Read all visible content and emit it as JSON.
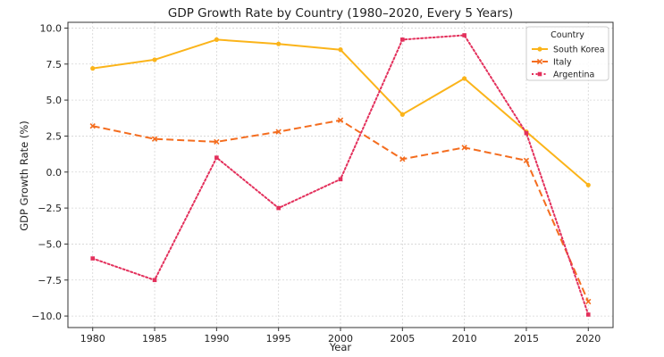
{
  "chart_data": {
    "type": "line",
    "title": "GDP Growth Rate by Country (1980–2020, Every 5 Years)",
    "xlabel": "Year",
    "ylabel": "GDP Growth Rate (%)",
    "x": [
      1980,
      1985,
      1990,
      1995,
      2000,
      2005,
      2010,
      2015,
      2020
    ],
    "x_tick_labels": [
      "1980",
      "1985",
      "1990",
      "1995",
      "2000",
      "2005",
      "2010",
      "2015",
      "2020"
    ],
    "y_ticks": [
      -10.0,
      -7.5,
      -5.0,
      -2.5,
      0.0,
      2.5,
      5.0,
      7.5,
      10.0
    ],
    "y_tick_labels": [
      "−10.0",
      "−7.5",
      "−5.0",
      "−2.5",
      "0.0",
      "2.5",
      "5.0",
      "7.5",
      "10.0"
    ],
    "xlim": [
      1978,
      2022
    ],
    "ylim": [
      -10.8,
      10.4
    ],
    "grid": true,
    "legend": {
      "title": "Country",
      "placement": "top-right"
    },
    "series": [
      {
        "name": "South Korea",
        "values": [
          7.2,
          7.8,
          9.2,
          8.9,
          8.5,
          4.0,
          6.5,
          2.8,
          -0.9
        ],
        "color": "#FBB41A",
        "line_style": "solid",
        "marker": "circle"
      },
      {
        "name": "Italy",
        "values": [
          3.2,
          2.3,
          2.1,
          2.8,
          3.6,
          0.9,
          1.7,
          0.8,
          -9.0
        ],
        "color": "#F46D1F",
        "line_style": "dashed",
        "marker": "x"
      },
      {
        "name": "Argentina",
        "values": [
          -6.0,
          -7.5,
          1.0,
          -2.5,
          -0.5,
          9.2,
          9.5,
          2.7,
          -9.9
        ],
        "color": "#E3305C",
        "line_style": "dotted",
        "marker": "square"
      }
    ]
  }
}
